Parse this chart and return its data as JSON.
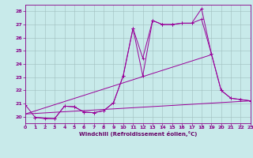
{
  "xlabel": "Windchill (Refroidissement éolien,°C)",
  "xlim": [
    0,
    23
  ],
  "ylim": [
    19.5,
    28.5
  ],
  "yticks": [
    20,
    21,
    22,
    23,
    24,
    25,
    26,
    27,
    28
  ],
  "xticks": [
    0,
    1,
    2,
    3,
    4,
    5,
    6,
    7,
    8,
    9,
    10,
    11,
    12,
    13,
    14,
    15,
    16,
    17,
    18,
    19,
    20,
    21,
    22,
    23
  ],
  "bg_color": "#c8eaea",
  "grid_color": "#b0c8c8",
  "line_color": "#990099",
  "line1_x": [
    0,
    1,
    2,
    3,
    4,
    5,
    6,
    7,
    8,
    9,
    10,
    11,
    12,
    13,
    14,
    15,
    16,
    17,
    18,
    19,
    20,
    21,
    22,
    23
  ],
  "line1_y": [
    20.9,
    19.95,
    19.85,
    19.85,
    20.8,
    20.75,
    20.35,
    20.3,
    20.45,
    21.05,
    23.1,
    26.7,
    23.1,
    27.3,
    27.0,
    27.0,
    27.1,
    27.1,
    28.2,
    24.8,
    22.0,
    21.4,
    21.3,
    21.2
  ],
  "line2_x": [
    1,
    3,
    4,
    5,
    6,
    7,
    8,
    9,
    10,
    11,
    12,
    13,
    14,
    15,
    16,
    17,
    18,
    19,
    20,
    21,
    22,
    23
  ],
  "line2_y": [
    19.95,
    19.85,
    20.8,
    20.75,
    20.35,
    20.3,
    20.45,
    21.05,
    23.1,
    26.7,
    24.45,
    27.3,
    27.0,
    27.0,
    27.1,
    27.1,
    27.4,
    24.8,
    22.0,
    21.4,
    21.3,
    21.2
  ],
  "line3_x": [
    0,
    23
  ],
  "line3_y": [
    20.2,
    21.2
  ],
  "line4_x": [
    0,
    19
  ],
  "line4_y": [
    20.2,
    24.7
  ]
}
